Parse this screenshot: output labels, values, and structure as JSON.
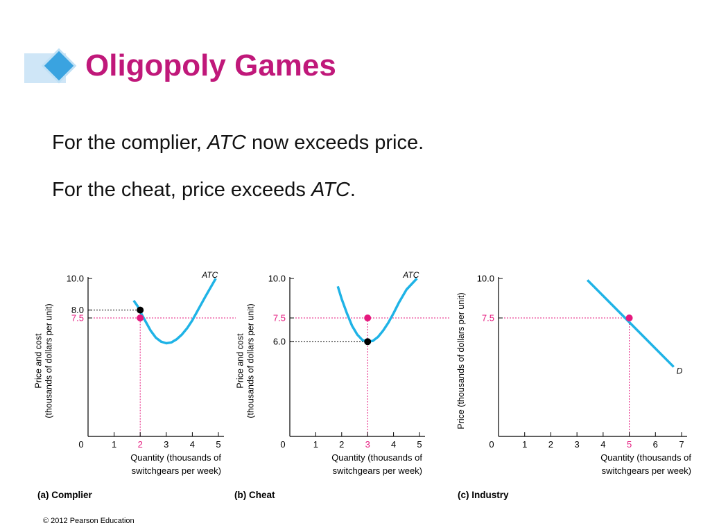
{
  "slide": {
    "title": "Oligopoly Games",
    "line1": {
      "pre": "For the complier, ",
      "em": "ATC",
      "post": " now exceeds price."
    },
    "line2": {
      "pre": "For the cheat, price exceeds ",
      "em": "ATC",
      "post": "."
    },
    "footer": "© 2012 Pearson Education"
  },
  "colors": {
    "title": "#c0187a",
    "curve": "#1fb3e6",
    "highlight": "#e5197e",
    "black": "#000000"
  },
  "chart_data": [
    {
      "type": "line",
      "panel_label": "(a) Complier",
      "ylabel_lines": [
        "Price and cost",
        "(thousands of dollars per unit)"
      ],
      "xlabel_lines": [
        "Quantity (thousands of",
        "switchgears per week)"
      ],
      "xlim": [
        0,
        5
      ],
      "ylim": [
        0,
        10
      ],
      "x_ticks": [
        "0",
        "1",
        "2",
        "3",
        "4",
        "5"
      ],
      "highlight_x_tick": "2",
      "y_ticks": [
        {
          "value": 10,
          "label": "10.0",
          "highlight": false
        },
        {
          "value": 8,
          "label": "8.0",
          "highlight": false
        },
        {
          "value": 7.5,
          "label": "7.5",
          "highlight": true
        }
      ],
      "series": [
        {
          "name": "ATC",
          "color_key": "curve",
          "x": [
            1.75,
            1.9,
            2.0,
            2.2,
            2.4,
            2.6,
            2.8,
            3.0,
            3.2,
            3.4,
            3.6,
            3.8,
            4.0,
            4.2,
            4.5,
            4.9
          ],
          "y": [
            8.6,
            8.25,
            7.9,
            7.3,
            6.7,
            6.25,
            6.0,
            5.9,
            5.95,
            6.15,
            6.45,
            6.85,
            7.35,
            7.95,
            8.85,
            10.0
          ]
        }
      ],
      "points": [
        {
          "x": 2,
          "y": 8.0,
          "color_key": "black"
        },
        {
          "x": 2,
          "y": 7.5,
          "color_key": "highlight"
        }
      ],
      "guides": [
        {
          "y": 8.0,
          "color_key": "black",
          "to_x": 2
        },
        {
          "y": 7.5,
          "color_key": "highlight",
          "full": true
        },
        {
          "x": 2,
          "color_key": "highlight",
          "from_y": 8.0
        }
      ]
    },
    {
      "type": "line",
      "panel_label": "(b) Cheat",
      "ylabel_lines": [
        "Price and cost",
        "(thousands of dollars per unit)"
      ],
      "xlabel_lines": [
        "Quantity (thousands of",
        "switchgears per week)"
      ],
      "xlim": [
        0,
        5
      ],
      "ylim": [
        0,
        10
      ],
      "x_ticks": [
        "0",
        "1",
        "2",
        "3",
        "4",
        "5"
      ],
      "highlight_x_tick": "3",
      "y_ticks": [
        {
          "value": 10,
          "label": "10.0",
          "highlight": false
        },
        {
          "value": 7.5,
          "label": "7.5",
          "highlight": true
        },
        {
          "value": 6,
          "label": "6.0",
          "highlight": false
        }
      ],
      "series": [
        {
          "name": "ATC",
          "color_key": "curve",
          "x": [
            1.85,
            2.0,
            2.2,
            2.4,
            2.6,
            2.8,
            3.0,
            3.2,
            3.4,
            3.6,
            3.8,
            4.0,
            4.2,
            4.5,
            4.9
          ],
          "y": [
            9.5,
            8.7,
            7.8,
            7.0,
            6.45,
            6.1,
            6.0,
            6.05,
            6.3,
            6.7,
            7.2,
            7.8,
            8.45,
            9.3,
            10.0
          ]
        }
      ],
      "points": [
        {
          "x": 3,
          "y": 7.5,
          "color_key": "highlight"
        },
        {
          "x": 3,
          "y": 6.0,
          "color_key": "black"
        }
      ],
      "guides": [
        {
          "y": 7.5,
          "color_key": "highlight",
          "full": true
        },
        {
          "y": 6.0,
          "color_key": "black",
          "to_x": 3
        },
        {
          "x": 3,
          "color_key": "highlight",
          "from_y": 7.5
        }
      ]
    },
    {
      "type": "line",
      "panel_label": "(c) Industry",
      "ylabel_lines": [
        "Price (thousands of dollars per unit)"
      ],
      "xlabel_lines": [
        "Quantity (thousands of",
        "switchgears per week)"
      ],
      "xlim": [
        0,
        7
      ],
      "ylim": [
        0,
        10
      ],
      "x_ticks": [
        "0",
        "1",
        "2",
        "3",
        "4",
        "5",
        "6",
        "7"
      ],
      "highlight_x_tick": "5",
      "y_ticks": [
        {
          "value": 10,
          "label": "10.0",
          "highlight": false
        },
        {
          "value": 7.5,
          "label": "7.5",
          "highlight": true
        }
      ],
      "series": [
        {
          "name": "D",
          "color_key": "curve",
          "x": [
            3.4,
            6.7
          ],
          "y": [
            9.9,
            4.4
          ]
        }
      ],
      "points": [
        {
          "x": 5,
          "y": 7.5,
          "color_key": "highlight"
        }
      ],
      "guides": [
        {
          "y": 7.5,
          "color_key": "highlight",
          "to_x": 5
        },
        {
          "x": 5,
          "color_key": "highlight",
          "from_y": 7.5
        }
      ]
    }
  ]
}
